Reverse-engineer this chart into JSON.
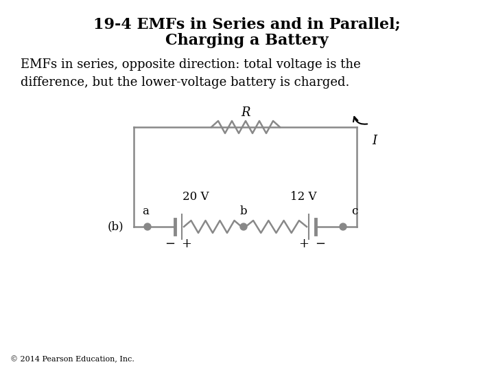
{
  "title_line1": "19-4 EMFs in Series and in Parallel;",
  "title_line2": "Charging a Battery",
  "body_text": "EMFs in series, opposite direction: total voltage is the\ndifference, but the lower-voltage battery is charged.",
  "footnote": "© 2014 Pearson Education, Inc.",
  "circuit_color": "#888888",
  "bg_color": "#ffffff",
  "label_a": "a",
  "label_b": "b",
  "label_c": "c",
  "label_b_label": "(b)",
  "label_R": "R",
  "label_I": "I",
  "label_20V": "20 V",
  "label_12V": "12 V",
  "title_fontsize": 16,
  "body_fontsize": 13,
  "footnote_fontsize": 8
}
